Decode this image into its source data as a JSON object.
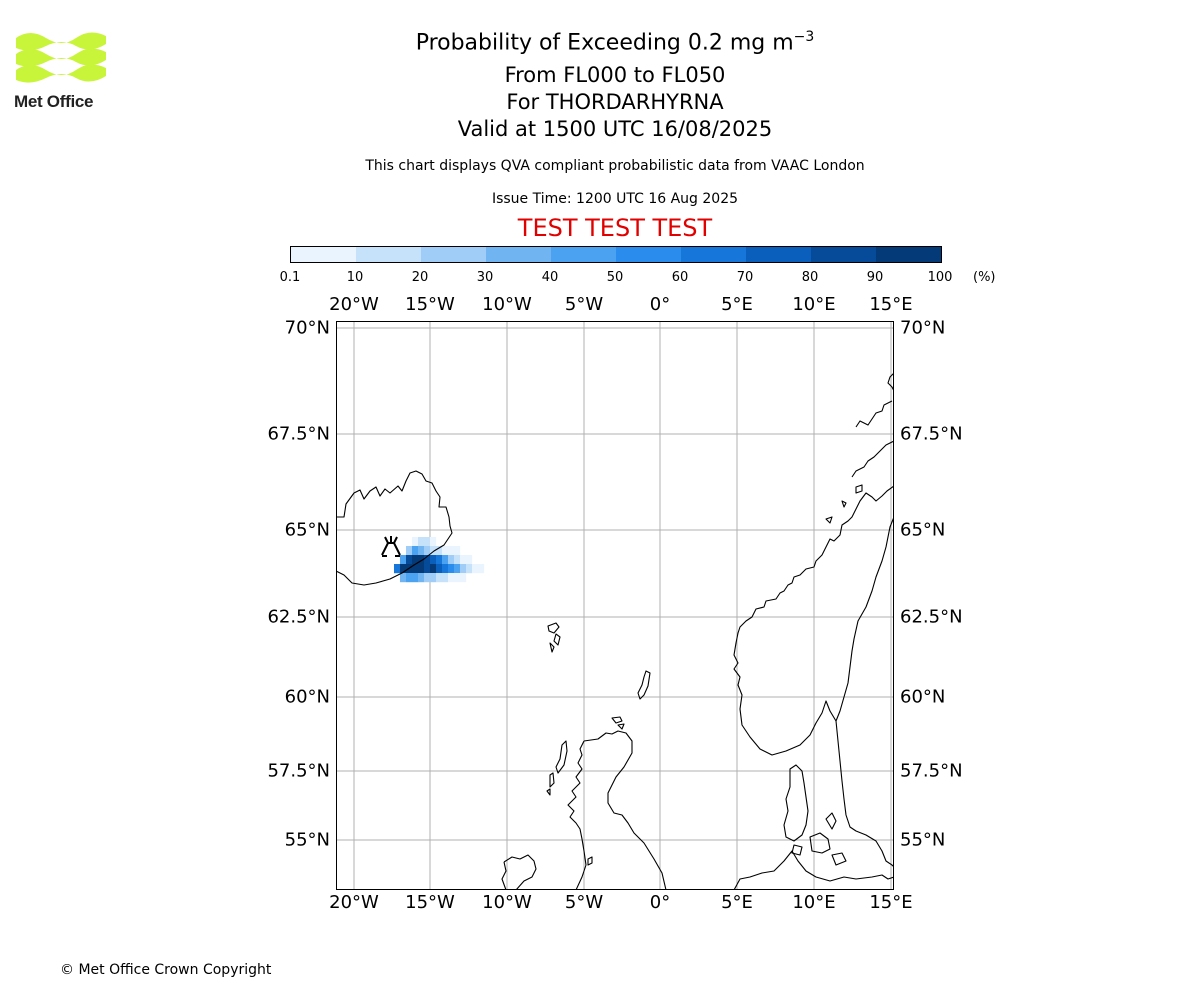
{
  "logo": {
    "text": "Met Office",
    "brand_color": "#c8f53a"
  },
  "header": {
    "title_main": "Probability of Exceeding 0.2 mg m",
    "title_sup": "−3",
    "levels": "From FL000 to FL050",
    "location": "For THORDARHYRNA",
    "valid": "Valid at 1500 UTC 16/08/2025",
    "description": "This chart displays QVA compliant probabilistic data from VAAC London",
    "issue": "Issue Time: 1200 UTC 16 Aug 2025",
    "test_banner": "TEST TEST TEST",
    "test_color": "#e00000"
  },
  "colorbar": {
    "ticks": [
      "0.1",
      "10",
      "20",
      "30",
      "40",
      "50",
      "60",
      "70",
      "80",
      "90",
      "100"
    ],
    "unit": "(%)",
    "colors": [
      "#eaf4ff",
      "#c6e2fb",
      "#9fcdf7",
      "#70b4f2",
      "#4aa2f0",
      "#2a8ded",
      "#1776d9",
      "#0a5fbd",
      "#064b99",
      "#043a78",
      "#022a55"
    ]
  },
  "map": {
    "lon_labels": [
      "20°W",
      "15°W",
      "10°W",
      "5°W",
      "0°",
      "5°E",
      "10°E",
      "15°E"
    ],
    "lat_labels": [
      "70°N",
      "67.5°N",
      "65°N",
      "62.5°N",
      "60°N",
      "57.5°N",
      "55°N"
    ],
    "volcano_icon": "volcano-icon"
  },
  "footer": {
    "copyright": "© Met Office Crown Copyright"
  }
}
